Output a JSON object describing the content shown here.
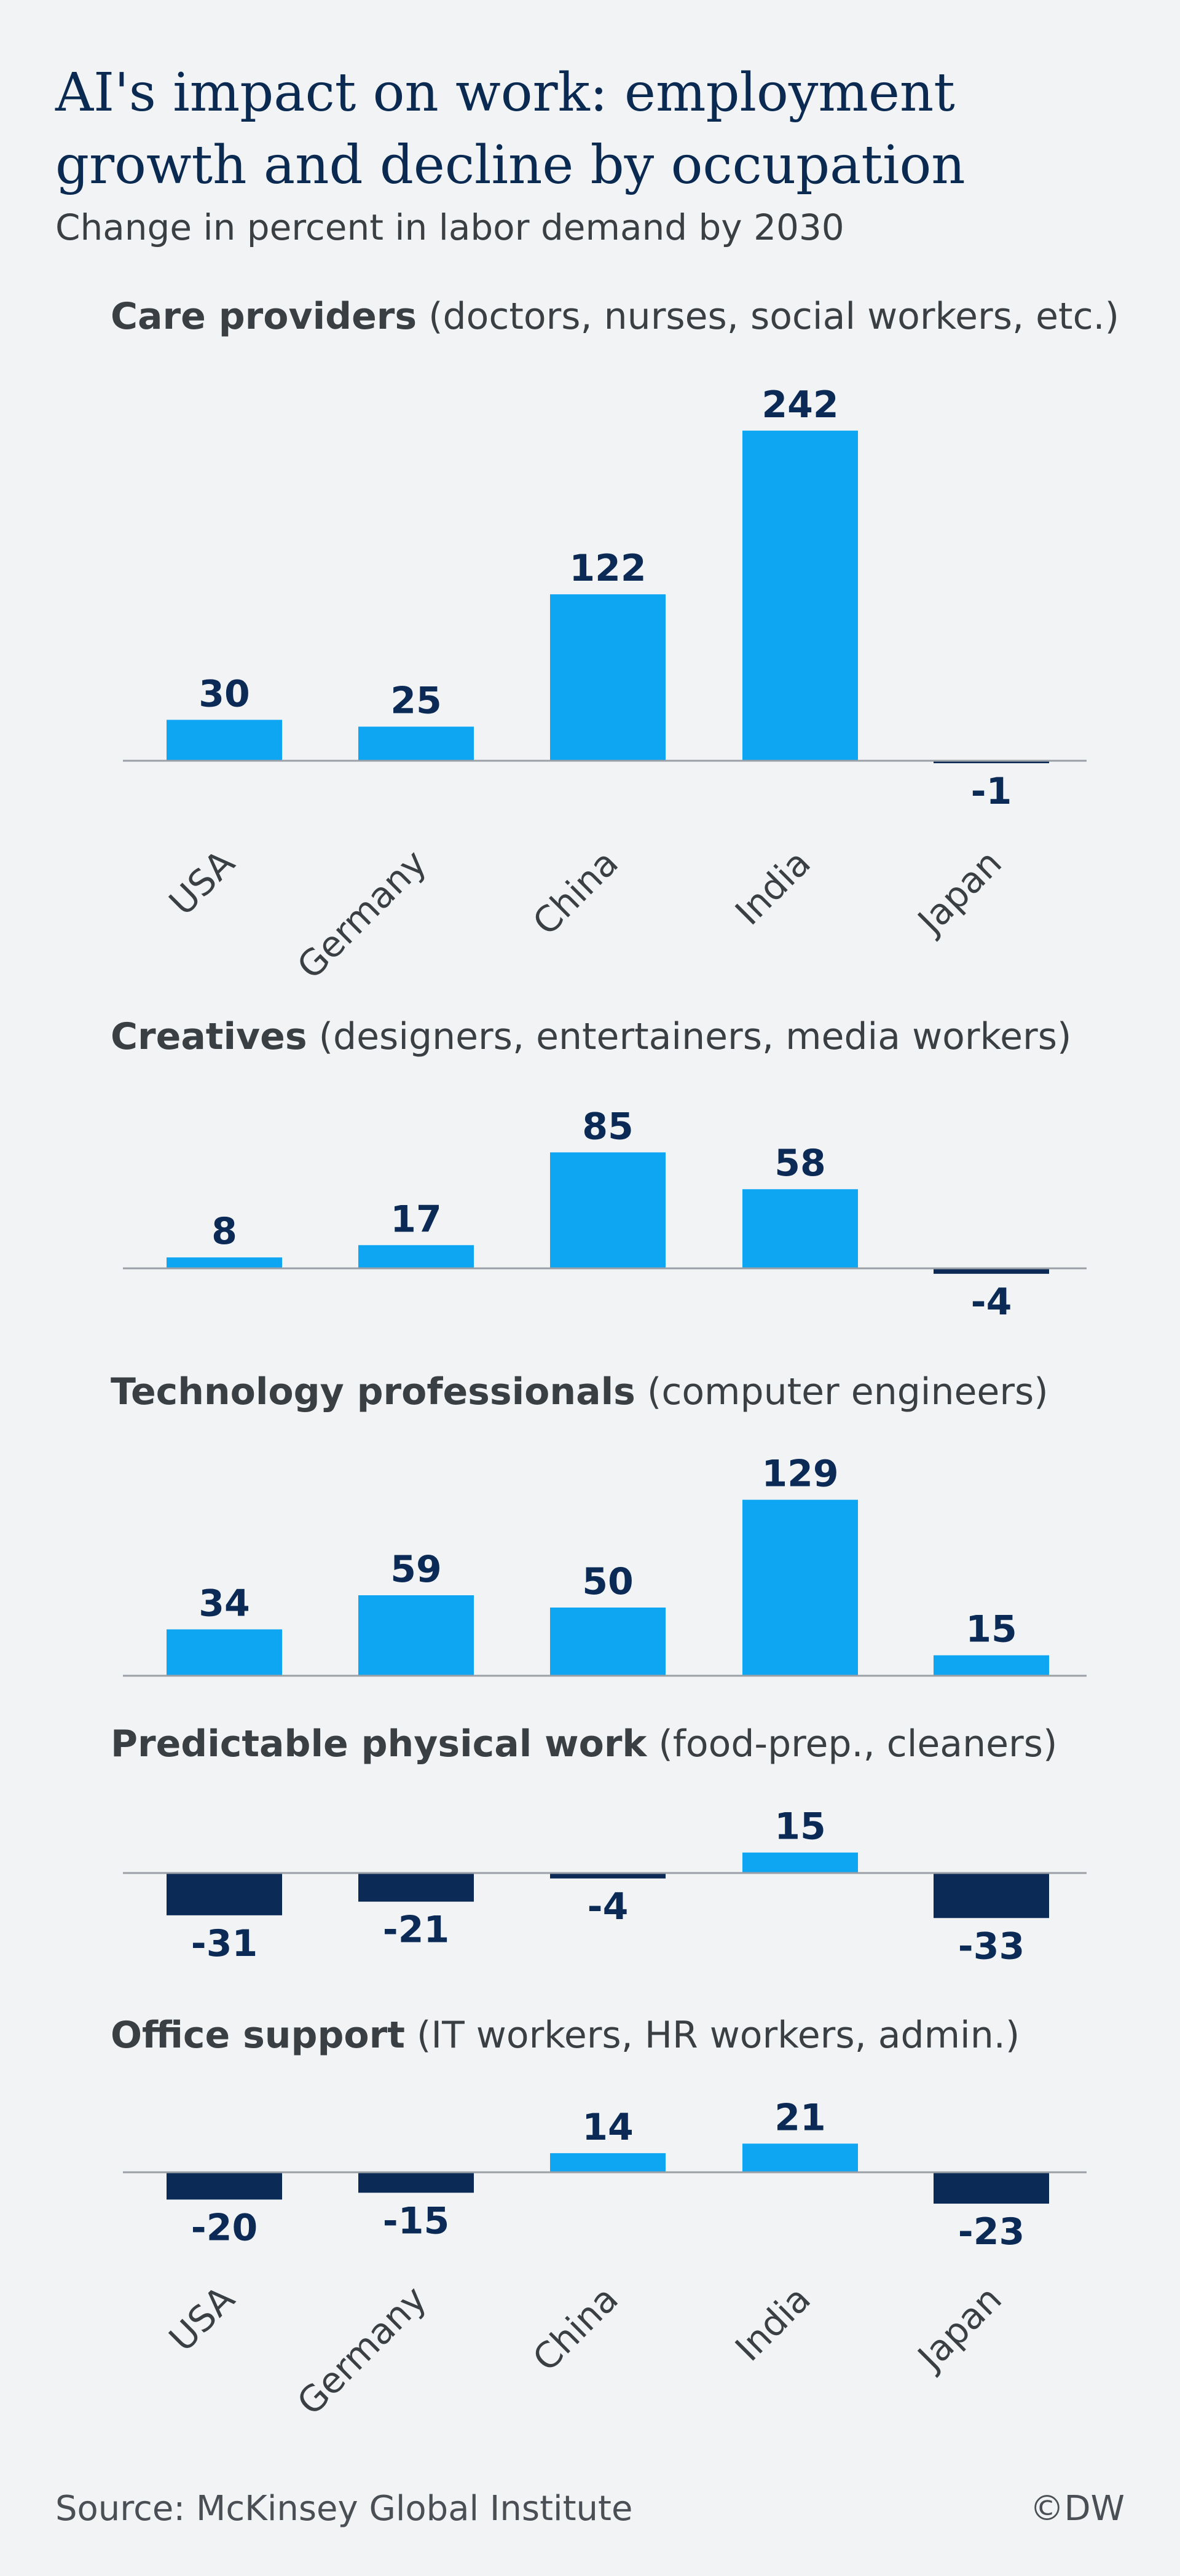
{
  "title": "AI's impact on work: employment growth and decline by occupation",
  "subtitle": "Change in percent in labor demand by 2030",
  "source": "Source: McKinsey Global Institute",
  "credit": "©DW",
  "colors": {
    "positive": "#0ea5f3",
    "negative": "#0b2a55",
    "axis": "#9aa0a6",
    "label": "#0b2a55",
    "tick": "#3a3f44"
  },
  "chart_data": [
    {
      "type": "bar",
      "title_bold": "Care providers",
      "title_rest": " (doctors, nurses, social workers, etc.)",
      "categories": [
        "USA",
        "Germany",
        "China",
        "India",
        "Japan"
      ],
      "values": [
        30,
        25,
        122,
        242,
        -1
      ],
      "show_x_labels": true
    },
    {
      "type": "bar",
      "title_bold": "Creatives",
      "title_rest": " (designers, entertainers, media workers)",
      "categories": [
        "USA",
        "Germany",
        "China",
        "India",
        "Japan"
      ],
      "values": [
        8,
        17,
        85,
        58,
        -4
      ],
      "show_x_labels": false
    },
    {
      "type": "bar",
      "title_bold": "Technology professionals",
      "title_rest": " (computer engineers)",
      "categories": [
        "USA",
        "Germany",
        "China",
        "India",
        "Japan"
      ],
      "values": [
        34,
        59,
        50,
        129,
        15
      ],
      "show_x_labels": false
    },
    {
      "type": "bar",
      "title_bold": "Predictable physical work",
      "title_rest": " (food-prep., cleaners)",
      "categories": [
        "USA",
        "Germany",
        "China",
        "India",
        "Japan"
      ],
      "values": [
        -31,
        -21,
        -4,
        15,
        -33
      ],
      "show_x_labels": false
    },
    {
      "type": "bar",
      "title_bold": "Office support",
      "title_rest": " (IT workers, HR workers, admin.)",
      "categories": [
        "USA",
        "Germany",
        "China",
        "India",
        "Japan"
      ],
      "values": [
        -20,
        -15,
        14,
        21,
        -23
      ],
      "show_x_labels": true
    }
  ]
}
